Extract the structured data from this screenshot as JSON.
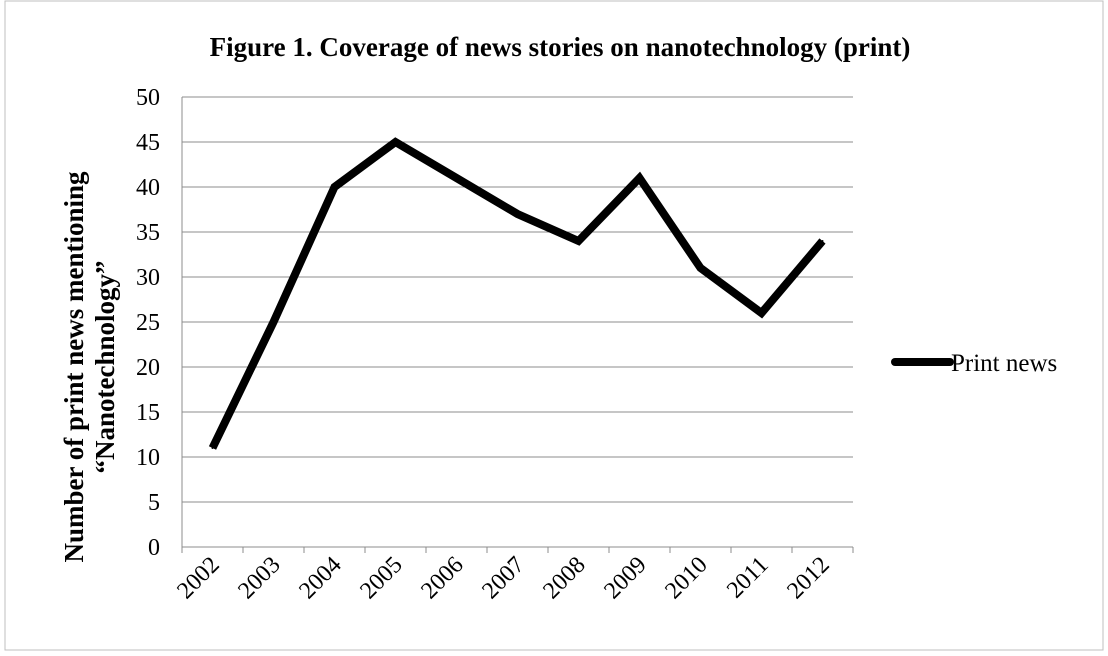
{
  "chart_data": {
    "type": "line",
    "title": "Figure 1. Coverage of news stories on nanotechnology (print)",
    "xlabel": "",
    "ylabel_lines": [
      "Number of print news mentioning",
      "“Nanotechnology”"
    ],
    "categories": [
      "2002",
      "2003",
      "2004",
      "2005",
      "2006",
      "2007",
      "2008",
      "2009",
      "2010",
      "2011",
      "2012"
    ],
    "series": [
      {
        "name": "Print news",
        "values": [
          11,
          25,
          40,
          45,
          41,
          37,
          34,
          41,
          31,
          26,
          34
        ],
        "color": "#000000"
      }
    ],
    "ylim": [
      0,
      50
    ],
    "yticks": [
      0,
      5,
      10,
      15,
      20,
      25,
      30,
      35,
      40,
      45,
      50
    ],
    "grid": true,
    "legend_position": "right"
  }
}
